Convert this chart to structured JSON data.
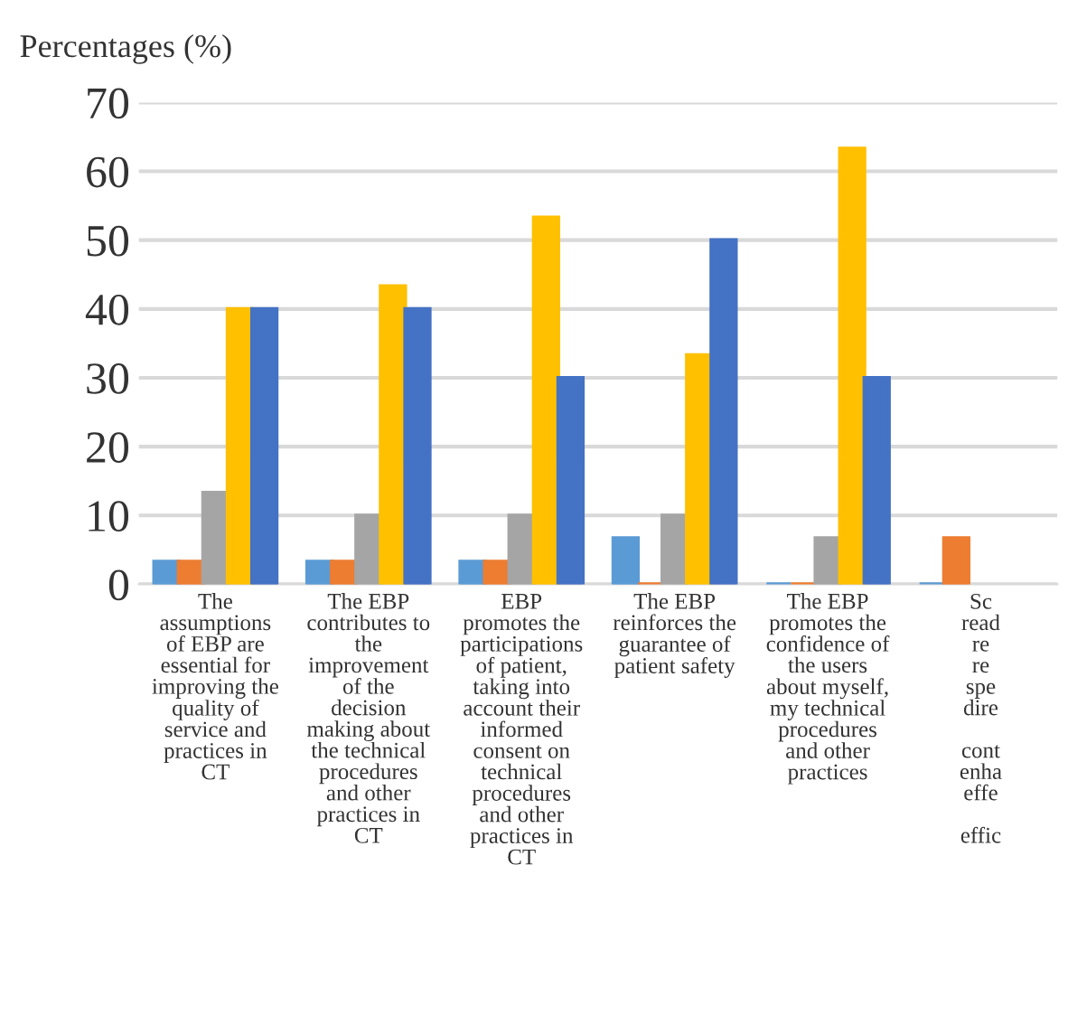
{
  "chart_data": {
    "type": "bar",
    "ylabel": "Percentages (%)",
    "categories": [
      "The\nassumptions\nof EBP are\nessential for\nimproving the\nquality of\nservice and\npractices in\nCT",
      "The EBP\ncontributes to\nthe\nimprovement\nof the\ndecision\nmaking about\nthe technical\nprocedures\nand other\npractices in\nCT",
      "EBP\npromotes the\nparticipations\nof patient,\ntaking into\naccount their\ninformed\nconsent on\ntechnical\nprocedures\nand other\npractices in\nCT",
      "The EBP\nreinforces the\nguarantee of\npatient safety",
      "The EBP\npromotes the\nconfidence of\nthe users\nabout myself,\nmy technical\nprocedures\nand other\npractices",
      "Sc\nread\nre\nre\nspe\ndire\n\ncont\nenha\neffe\n\neffic"
    ],
    "series": [
      {
        "color": "#5b9bd5",
        "values": [
          3.3,
          3.3,
          3.3,
          6.7,
          0,
          0
        ]
      },
      {
        "color": "#ed7d31",
        "values": [
          3.3,
          3.3,
          3.3,
          0,
          0,
          6.7
        ]
      },
      {
        "color": "#a5a5a5",
        "values": [
          13.3,
          10,
          10,
          10,
          6.7,
          null
        ]
      },
      {
        "color": "#ffc000",
        "values": [
          40,
          43.3,
          53.3,
          33.3,
          63.3,
          null
        ]
      },
      {
        "color": "#4472c4",
        "values": [
          40,
          40,
          30,
          50,
          30,
          null
        ]
      }
    ],
    "ylim": [
      0,
      70
    ],
    "yticks": [
      0,
      10,
      20,
      30,
      40,
      50,
      60,
      70
    ],
    "grid": "y",
    "legend": false
  }
}
